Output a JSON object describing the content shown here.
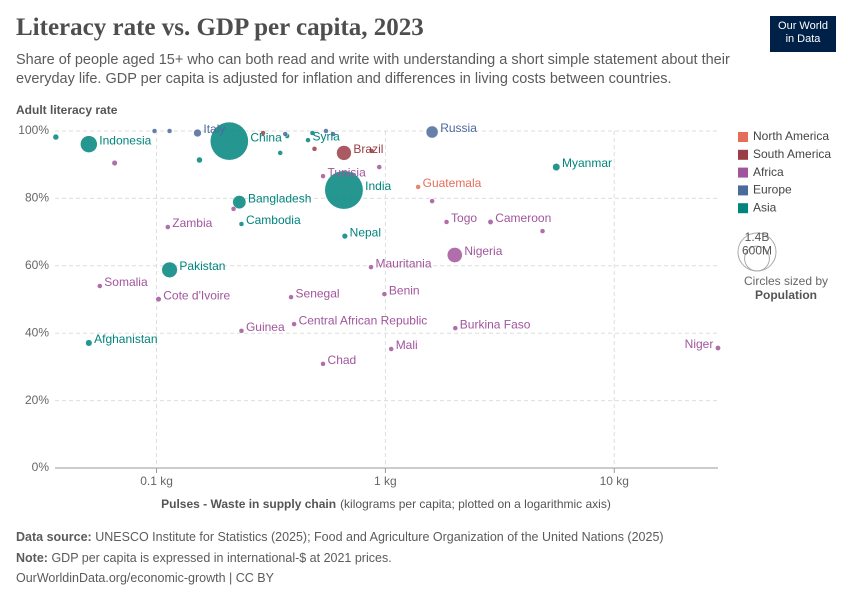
{
  "chart_data": {
    "type": "scatter",
    "title": "Literacy rate vs. GDP per capita, 2023",
    "subtitle": "Share of people aged 15+ who can both read and write with understanding a short simple statement about their everyday life. GDP per capita is adjusted for inflation and differences in living costs between countries.",
    "logo": [
      "Our World",
      "in Data"
    ],
    "y_label": "Adult literacy rate",
    "x_label": "Pulses - Waste in supply chain",
    "x_label_note": "(kilograms per capita; plotted on a logarithmic axis)",
    "x_log": true,
    "grid": true,
    "legend_position": "right",
    "xlim": [
      0.036,
      28.4
    ],
    "ylim": [
      0,
      100
    ],
    "xticks": [
      {
        "value": 0.1,
        "label": "0.1 kg"
      },
      {
        "value": 1,
        "label": "1 kg"
      },
      {
        "value": 10,
        "label": "10 kg"
      }
    ],
    "yticks": [
      {
        "value": 0,
        "label": "0%"
      },
      {
        "value": 20,
        "label": "20%"
      },
      {
        "value": 40,
        "label": "40%"
      },
      {
        "value": 60,
        "label": "60%"
      },
      {
        "value": 80,
        "label": "80%"
      },
      {
        "value": 100,
        "label": "100%"
      }
    ],
    "size_legend": {
      "title": "Circles sized by",
      "variable": "Population",
      "sizes": [
        {
          "value": 1400,
          "label": "1.4B"
        },
        {
          "value": 600,
          "label": "600M"
        }
      ]
    },
    "series": [
      {
        "name": "North America",
        "color": "#e56e5a",
        "x": [
          1.39
        ],
        "values": [
          83.4
        ],
        "sizes": [
          18
        ],
        "labels": [
          "Guatemala"
        ]
      },
      {
        "name": "South America",
        "color": "#9a3e45",
        "x": [
          0.659,
          0.87,
          0.292,
          0.49
        ],
        "values": [
          93.5,
          94.1,
          99.4,
          94.7
        ],
        "sizes": [
          216,
          7,
          3,
          10
        ],
        "labels": [
          "Brazil",
          null,
          null,
          null
        ]
      },
      {
        "name": "Africa",
        "color": "#a2559c",
        "x": [
          0.534,
          0.112,
          1.85,
          2.88,
          2.01,
          0.865,
          0.0565,
          0.102,
          0.387,
          0.99,
          0.399,
          2.02,
          0.235,
          28.4,
          1.06,
          0.534,
          0.0656,
          0.217,
          1.6,
          4.86,
          0.94
        ],
        "values": [
          86.6,
          71.5,
          73,
          73,
          63.2,
          59.6,
          54,
          50.1,
          50.7,
          51.6,
          42.7,
          41.5,
          40.7,
          35.6,
          35.3,
          30.9,
          90.5,
          76.9,
          79.2,
          70.3,
          89.3
        ],
        "sizes": [
          12,
          20,
          9,
          28,
          224,
          5,
          18,
          29,
          18,
          13,
          5,
          23,
          14,
          27,
          23,
          18,
          30,
          10,
          5,
          6,
          6
        ],
        "labels": [
          "Tunisia",
          "Zambia",
          "Togo",
          "Cameroon",
          "Nigeria",
          "Mauritania",
          "Somalia",
          "Cote d'Ivoire",
          "Senegal",
          "Benin",
          "Central African Republic",
          "Burkina Faso",
          "Guinea",
          "Niger",
          "Mali",
          "Chad",
          null,
          null,
          null,
          null,
          null
        ]
      },
      {
        "name": "Europe",
        "color": "#4c6a9c",
        "x": [
          0.151,
          1.6,
          0.114,
          0.098,
          0.55,
          0.59,
          0.365
        ],
        "values": [
          99.4,
          99.7,
          100,
          100,
          100,
          99.1,
          99.1
        ],
        "sizes": [
          59,
          144,
          3,
          2,
          10,
          5,
          4
        ],
        "labels": [
          "Italy",
          "Russia",
          null,
          null,
          null,
          null,
          null
        ]
      },
      {
        "name": "Asia",
        "color": "#00847e",
        "x": [
          0.0506,
          0.208,
          0.459,
          0.659,
          5.58,
          0.23,
          0.235,
          0.665,
          0.114,
          0.0506,
          0.0363,
          0.154,
          0.347,
          0.48,
          0.372
        ],
        "values": [
          96.1,
          97,
          97.3,
          82.5,
          89.3,
          78.9,
          72.4,
          68.8,
          58.8,
          37.1,
          98.2,
          91.4,
          93.5,
          99.4,
          98.5
        ],
        "sizes": [
          277,
          1410,
          23,
          1430,
          54,
          173,
          17,
          31,
          240,
          42,
          34,
          35,
          5,
          10,
          6
        ],
        "labels": [
          "Indonesia",
          "China",
          "Syria",
          "India",
          "Myanmar",
          "Bangladesh",
          "Cambodia",
          "Nepal",
          "Pakistan",
          "Afghanistan",
          null,
          null,
          null,
          null,
          null
        ]
      }
    ],
    "footer": {
      "source_label": "Data source:",
      "source": "UNESCO Institute for Statistics (2025); Food and Agriculture Organization of the United Nations (2025)",
      "note_label": "Note:",
      "note": "GDP per capita is expressed in international-$ at 2021 prices.",
      "url": "OurWorldinData.org/economic-growth | CC BY"
    }
  }
}
